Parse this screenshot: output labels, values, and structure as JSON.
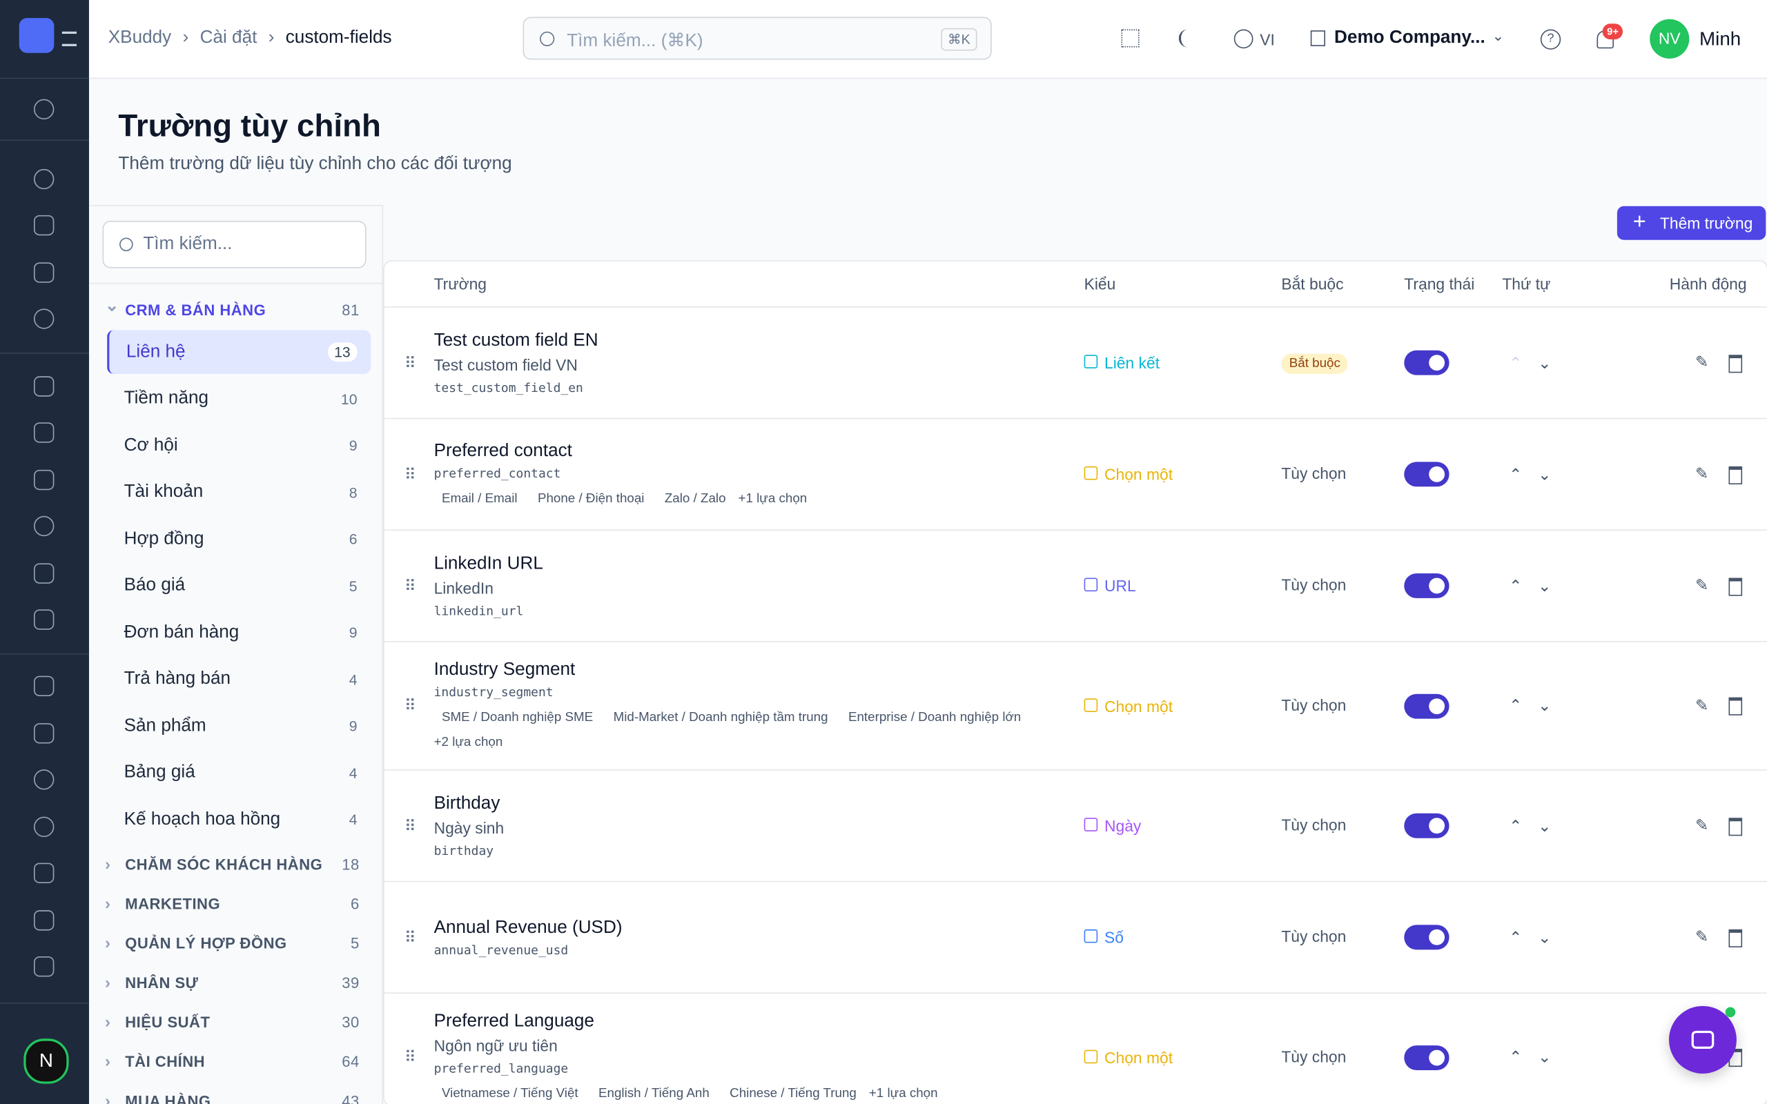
{
  "header": {
    "breadcrumb": [
      "XBuddy",
      "Cài đặt",
      "custom-fields"
    ],
    "search_placeholder": "Tìm kiếm... (⌘K)",
    "shortcut": "⌘K",
    "language": "VI",
    "company": "Demo Company...",
    "notification_badge": "9+",
    "user_initials": "NV",
    "user_name": "Minh"
  },
  "page": {
    "title": "Trường tùy chỉnh",
    "subtitle": "Thêm trường dữ liệu tùy chỉnh cho các đối tượng"
  },
  "sidebar": {
    "search_placeholder": "Tìm kiếm...",
    "groups": [
      {
        "name": "CRM & BÁN HÀNG",
        "count": 81,
        "expanded": true,
        "items": [
          {
            "name": "Liên hệ",
            "count": 13,
            "active": true
          },
          {
            "name": "Tiềm năng",
            "count": 10
          },
          {
            "name": "Cơ hội",
            "count": 9
          },
          {
            "name": "Tài khoản",
            "count": 8
          },
          {
            "name": "Hợp đồng",
            "count": 6
          },
          {
            "name": "Báo giá",
            "count": 5
          },
          {
            "name": "Đơn bán hàng",
            "count": 9
          },
          {
            "name": "Trả hàng bán",
            "count": 4
          },
          {
            "name": "Sản phẩm",
            "count": 9
          },
          {
            "name": "Bảng giá",
            "count": 4
          },
          {
            "name": "Kế hoạch hoa hồng",
            "count": 4
          }
        ]
      },
      {
        "name": "CHĂM SÓC KHÁCH HÀNG",
        "count": 18
      },
      {
        "name": "MARKETING",
        "count": 6
      },
      {
        "name": "QUẢN LÝ HỢP ĐỒNG",
        "count": 5
      },
      {
        "name": "NHÂN SỰ",
        "count": 39
      },
      {
        "name": "HIỆU SUẤT",
        "count": 30
      },
      {
        "name": "TÀI CHÍNH",
        "count": 64
      },
      {
        "name": "MUA HÀNG",
        "count": 43
      }
    ]
  },
  "add_button": "Thêm trường",
  "table": {
    "columns": [
      "Trường",
      "Kiểu",
      "Bắt buộc",
      "Trạng thái",
      "Thứ tự",
      "Hành động"
    ],
    "rows": [
      {
        "name": "Test custom field EN",
        "label": "Test custom field VN",
        "key": "test_custom_field_en",
        "type": "Liên kết",
        "type_color": "#06b6d4",
        "required": "Bắt buộc"
      },
      {
        "name": "Preferred contact",
        "key": "preferred_contact",
        "type": "Chọn một",
        "type_color": "#eab308",
        "required": "Tùy chọn",
        "options": [
          "Email / Email",
          "Phone / Điện thoại",
          "Zalo / Zalo"
        ],
        "more": "+1 lựa chọn"
      },
      {
        "name": "LinkedIn URL",
        "label": "LinkedIn",
        "key": "linkedin_url",
        "type": "URL",
        "type_color": "#6366f1",
        "required": "Tùy chọn"
      },
      {
        "name": "Industry Segment",
        "key": "industry_segment",
        "type": "Chọn một",
        "type_color": "#eab308",
        "required": "Tùy chọn",
        "options": [
          "SME / Doanh nghiệp SME",
          "Mid-Market / Doanh nghiệp tầm trung",
          "Enterprise / Doanh nghiệp lớn"
        ],
        "more": "+2 lựa chọn"
      },
      {
        "name": "Birthday",
        "label": "Ngày sinh",
        "key": "birthday",
        "type": "Ngày",
        "type_color": "#a855f7",
        "required": "Tùy chọn"
      },
      {
        "name": "Annual Revenue (USD)",
        "key": "annual_revenue_usd",
        "type": "Số",
        "type_color": "#3b82f6",
        "required": "Tùy chọn"
      },
      {
        "name": "Preferred Language",
        "label": "Ngôn ngữ ưu tiên",
        "key": "preferred_language",
        "type": "Chọn một",
        "type_color": "#eab308",
        "required": "Tùy chọn",
        "options": [
          "Vietnamese / Tiếng Việt",
          "English / Tiếng Anh",
          "Chinese / Tiếng Trung"
        ],
        "more": "+1 lựa chọn"
      }
    ]
  }
}
